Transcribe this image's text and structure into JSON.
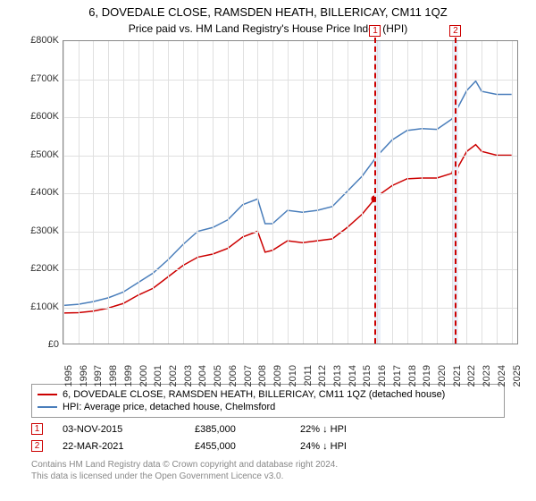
{
  "title_line1": "6, DOVEDALE CLOSE, RAMSDEN HEATH, BILLERICAY, CM11 1QZ",
  "title_line2": "Price paid vs. HM Land Registry's House Price Index (HPI)",
  "chart": {
    "background_color": "#ffffff",
    "grid_color": "#e0e0e0",
    "axis_color": "#888888",
    "x_years": [
      1995,
      1996,
      1997,
      1998,
      1999,
      2000,
      2001,
      2002,
      2003,
      2004,
      2005,
      2006,
      2007,
      2008,
      2009,
      2010,
      2011,
      2012,
      2013,
      2014,
      2015,
      2016,
      2017,
      2018,
      2019,
      2020,
      2021,
      2022,
      2023,
      2024,
      2025
    ],
    "xmin": 1995,
    "xmax": 2025.5,
    "ymin": 0,
    "ymax": 800000,
    "ytick_step": 100000,
    "ytick_labels": [
      "£0",
      "£100K",
      "£200K",
      "£300K",
      "£400K",
      "£500K",
      "£600K",
      "£700K",
      "£800K"
    ],
    "series": [
      {
        "name": "price_paid",
        "label": "6, DOVEDALE CLOSE, RAMSDEN HEATH, BILLERICAY, CM11 1QZ (detached house)",
        "color": "#cc0000",
        "width": 1.8,
        "points": [
          [
            1995,
            85000
          ],
          [
            1996,
            86000
          ],
          [
            1997,
            90000
          ],
          [
            1998,
            98000
          ],
          [
            1999,
            110000
          ],
          [
            2000,
            132000
          ],
          [
            2001,
            150000
          ],
          [
            2002,
            180000
          ],
          [
            2003,
            210000
          ],
          [
            2004,
            232000
          ],
          [
            2005,
            240000
          ],
          [
            2006,
            255000
          ],
          [
            2007,
            285000
          ],
          [
            2008,
            300000
          ],
          [
            2008.5,
            245000
          ],
          [
            2009,
            250000
          ],
          [
            2010,
            275000
          ],
          [
            2011,
            270000
          ],
          [
            2012,
            275000
          ],
          [
            2013,
            280000
          ],
          [
            2014,
            310000
          ],
          [
            2015,
            345000
          ],
          [
            2015.84,
            385000
          ],
          [
            2016,
            392000
          ],
          [
            2017,
            420000
          ],
          [
            2018,
            438000
          ],
          [
            2019,
            440000
          ],
          [
            2020,
            440000
          ],
          [
            2021.22,
            455000
          ],
          [
            2022,
            510000
          ],
          [
            2022.6,
            528000
          ],
          [
            2023,
            510000
          ],
          [
            2024,
            500000
          ],
          [
            2025,
            500000
          ]
        ]
      },
      {
        "name": "hpi",
        "label": "HPI: Average price, detached house, Chelmsford",
        "color": "#4a7ebb",
        "width": 1.4,
        "points": [
          [
            1995,
            105000
          ],
          [
            1996,
            108000
          ],
          [
            1997,
            115000
          ],
          [
            1998,
            125000
          ],
          [
            1999,
            140000
          ],
          [
            2000,
            165000
          ],
          [
            2001,
            190000
          ],
          [
            2002,
            225000
          ],
          [
            2003,
            265000
          ],
          [
            2004,
            300000
          ],
          [
            2005,
            310000
          ],
          [
            2006,
            330000
          ],
          [
            2007,
            370000
          ],
          [
            2008,
            385000
          ],
          [
            2008.5,
            320000
          ],
          [
            2009,
            320000
          ],
          [
            2010,
            355000
          ],
          [
            2011,
            350000
          ],
          [
            2012,
            355000
          ],
          [
            2013,
            365000
          ],
          [
            2014,
            405000
          ],
          [
            2015,
            445000
          ],
          [
            2016,
            498000
          ],
          [
            2017,
            540000
          ],
          [
            2018,
            565000
          ],
          [
            2019,
            570000
          ],
          [
            2020,
            568000
          ],
          [
            2021,
            595000
          ],
          [
            2022,
            670000
          ],
          [
            2022.6,
            695000
          ],
          [
            2023,
            668000
          ],
          [
            2024,
            660000
          ],
          [
            2025,
            660000
          ]
        ]
      }
    ],
    "bands": [
      {
        "x_from": 2015.84,
        "x_to": 2016.25,
        "color": "#eaf0fa"
      },
      {
        "x_from": 2021.0,
        "x_to": 2021.45,
        "color": "#eaf0fa"
      }
    ],
    "sale_markers": [
      {
        "n": 1,
        "x": 2015.84,
        "y": 385000
      },
      {
        "n": 2,
        "x": 2021.22,
        "y": 455000
      }
    ]
  },
  "legend_items": [
    {
      "color": "#cc0000",
      "text": "6, DOVEDALE CLOSE, RAMSDEN HEATH, BILLERICAY, CM11 1QZ (detached house)"
    },
    {
      "color": "#4a7ebb",
      "text": "HPI: Average price, detached house, Chelmsford"
    }
  ],
  "sales": [
    {
      "n": "1",
      "date": "03-NOV-2015",
      "price": "£385,000",
      "delta": "22% ↓ HPI"
    },
    {
      "n": "2",
      "date": "22-MAR-2021",
      "price": "£455,000",
      "delta": "24% ↓ HPI"
    }
  ],
  "footer_line1": "Contains HM Land Registry data © Crown copyright and database right 2024.",
  "footer_line2": "This data is licensed under the Open Government Licence v3.0."
}
